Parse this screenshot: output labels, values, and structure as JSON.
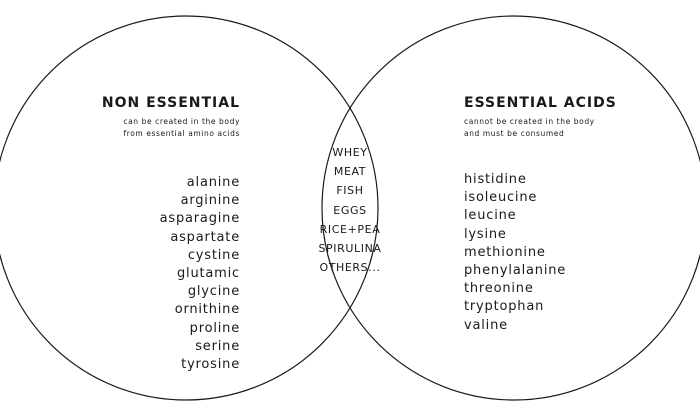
{
  "diagram": {
    "type": "venn",
    "stroke_color": "#1a1a1a",
    "left": {
      "title": "NON ESSENTIAL",
      "subtitle_lines": [
        "can be created in the body",
        "from essential amino acids"
      ],
      "items": [
        "alanine",
        "arginine",
        "asparagine",
        "aspartate",
        "cystine",
        "glutamic",
        "glycine",
        "ornithine",
        "proline",
        "serine",
        "tyrosine"
      ]
    },
    "right": {
      "title": "ESSENTIAL ACIDS",
      "subtitle_lines": [
        "cannot be created in the body",
        "and must be consumed"
      ],
      "items": [
        "histidine",
        "isoleucine",
        "leucine",
        "lysine",
        "methionine",
        "phenylalanine",
        "threonine",
        "tryptophan",
        "valine"
      ]
    },
    "overlap": {
      "items": [
        "WHEY",
        "MEAT",
        "FISH",
        "EGGS",
        "RICE+PEA",
        "SPIRULINA",
        "OTHERS..."
      ]
    }
  }
}
